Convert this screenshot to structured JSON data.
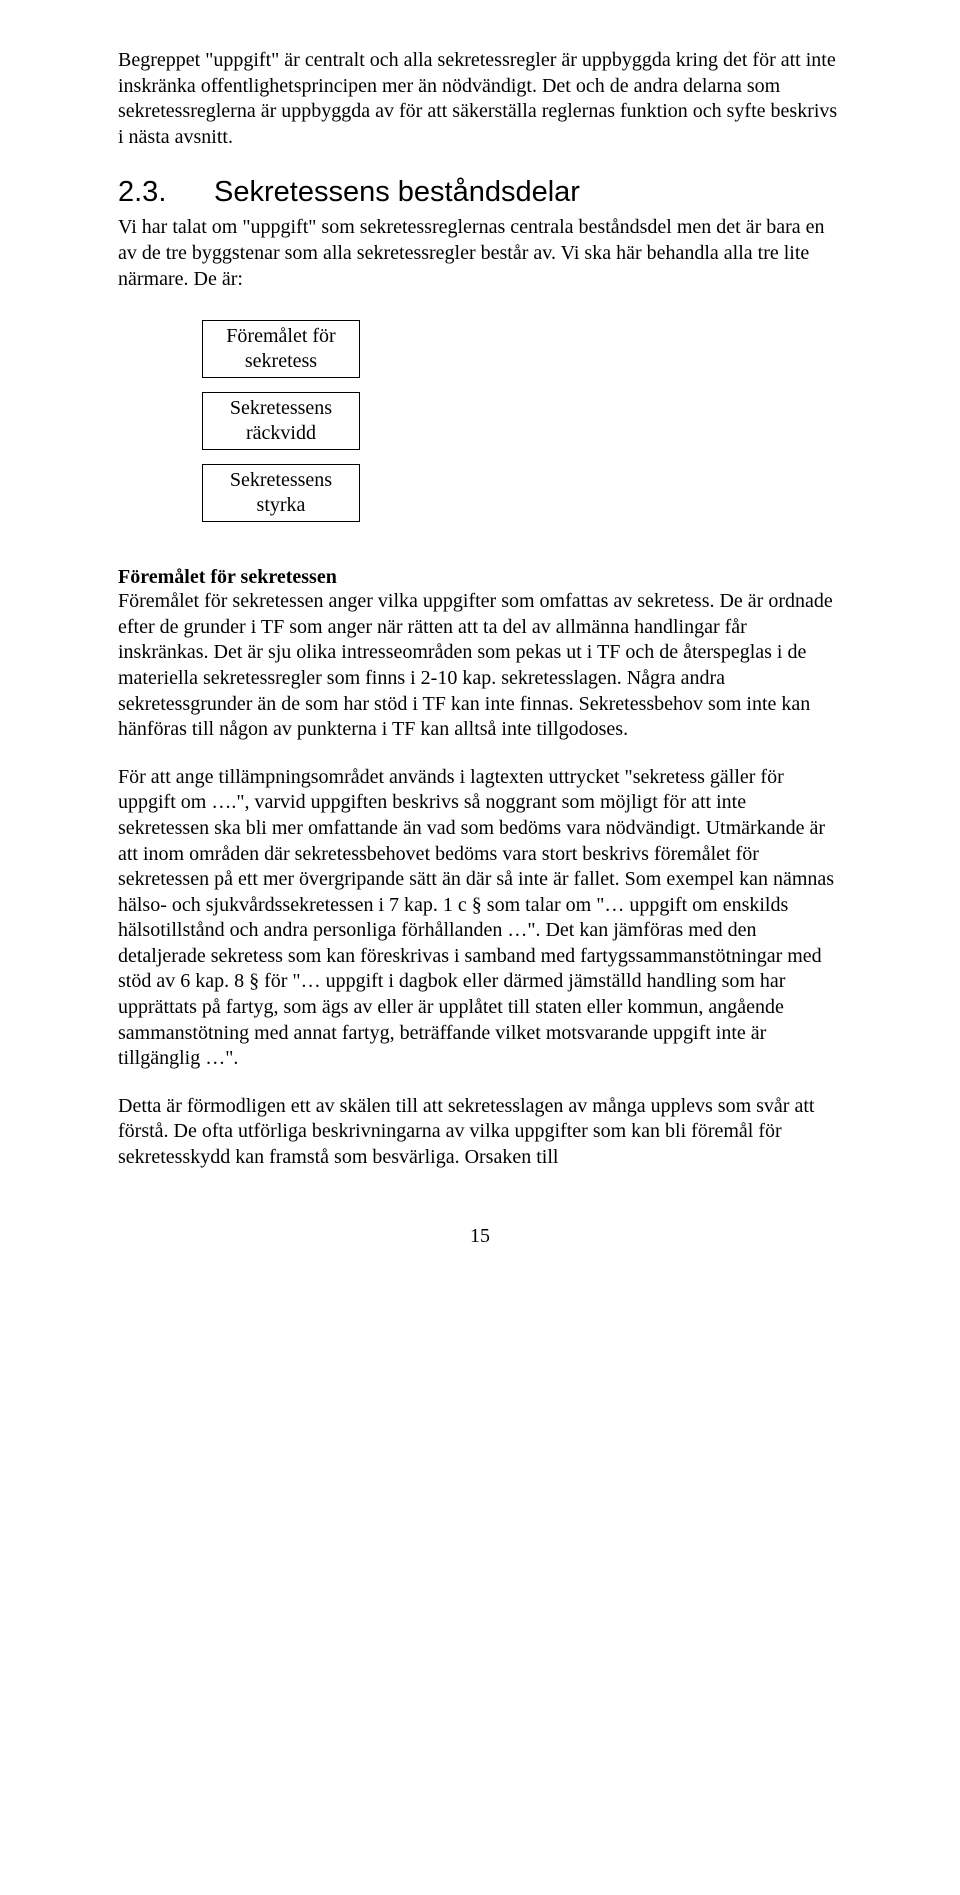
{
  "paragraphs": {
    "p1": "Begreppet \"uppgift\" är centralt och alla sekretessregler är uppbyggda kring det för att inte inskränka offentlighetsprincipen mer än nödvändigt. Det och de andra delarna som sekretessreglerna är uppbyggda av för att säkerställa reglernas funktion och syfte beskrivs i nästa avsnitt.",
    "p2": "Vi har talat om \"uppgift\" som sekretessreglernas centrala beståndsdel men det är bara en av de tre byggstenar som alla sekretessregler består av. Vi ska här behandla alla tre lite närmare. De är:",
    "p3": "Föremålet för sekretessen anger vilka uppgifter som omfattas av sekretess. De är ordnade efter de grunder i TF som anger när rätten att ta del av allmänna handlingar får inskränkas. Det är sju olika intresseområden som pekas ut i TF och de återspeglas i de materiella sekretessregler som finns i 2-10 kap. sekretesslagen. Några andra sekretessgrunder än de som har stöd i TF kan inte finnas. Sekretessbehov som inte kan hänföras till någon av punkterna i TF kan alltså inte tillgodoses.",
    "p4": "För att ange tillämpningsområdet används i lagtexten uttrycket \"sekretess gäller för uppgift om ….\", varvid uppgiften beskrivs så noggrant som möjligt för att inte sekretessen ska bli mer omfattande än vad som bedöms vara nödvändigt. Utmärkande är att inom områden där sekretessbehovet bedöms vara stort beskrivs föremålet för sekretessen på ett mer övergripande sätt än där så inte är fallet. Som exempel kan nämnas hälso- och sjukvårdssekretessen i 7 kap. 1 c § som talar om \"… uppgift om enskilds hälsotillstånd och andra personliga förhållanden …\". Det kan jämföras med den detaljerade sekretess som kan föreskrivas i samband med fartygssammanstötningar med stöd av 6 kap. 8 § för \"… uppgift i dagbok eller därmed jämställd handling som har upprättats på fartyg, som ägs av eller är upplåtet till staten eller kommun, angående sammanstötning med annat fartyg, beträffande vilket motsvarande uppgift inte är tillgänglig …\".",
    "p5": "Detta är förmodligen ett av skälen till att sekretesslagen av många upplevs som svår att förstå. De ofta utförliga beskrivningarna av vilka uppgifter som kan bli föremål för sekretesskydd kan framstå som besvärliga. Orsaken till"
  },
  "heading": {
    "number": "2.3.",
    "title": "Sekretessens beståndsdelar"
  },
  "boxes": {
    "b1_line1": "Föremålet för",
    "b1_line2": "sekretess",
    "b2_line1": "Sekretessens",
    "b2_line2": "räckvidd",
    "b3_line1": "Sekretessens",
    "b3_line2": "styrka"
  },
  "subheading": "Föremålet för sekretessen",
  "pageNumber": "15"
}
